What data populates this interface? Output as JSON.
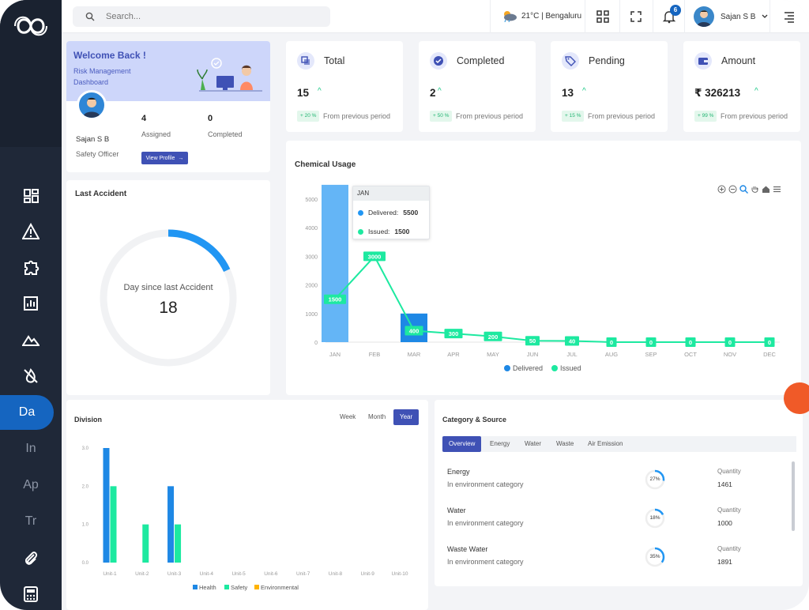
{
  "header": {
    "search_placeholder": "Search...",
    "weather": "21°C | Bengaluru",
    "notification_count": "6",
    "user_name": "Sajan S B"
  },
  "sidebar": {
    "items": [
      {
        "icon": "dashboard-icon"
      },
      {
        "icon": "warning-icon"
      },
      {
        "icon": "puzzle-icon"
      },
      {
        "icon": "report-chart-icon"
      },
      {
        "icon": "mountain-icon"
      },
      {
        "icon": "no-fire-icon"
      },
      {
        "text": "Da",
        "active": true
      },
      {
        "text": "In"
      },
      {
        "text": "Ap"
      },
      {
        "text": "Tr"
      },
      {
        "icon": "paperclip-icon"
      },
      {
        "icon": "calculator-icon"
      }
    ]
  },
  "welcome": {
    "title": "Welcome Back !",
    "subtitle": "Risk Management Dashboard",
    "name": "Sajan S B",
    "role": "Safety Officer",
    "assigned_value": "4",
    "assigned_label": "Assigned",
    "completed_value": "0",
    "completed_label": "Completed",
    "view_profile": "View Profile"
  },
  "stats": [
    {
      "title": "Total",
      "value": "15",
      "change": "+ 20 %",
      "from": "From previous period",
      "icon": "layers-icon"
    },
    {
      "title": "Completed",
      "value": "2",
      "change": "+ 50 %",
      "from": "From previous period",
      "icon": "check-circle-icon"
    },
    {
      "title": "Pending",
      "value": "13",
      "change": "+ 15 %",
      "from": "From previous period",
      "icon": "tag-icon"
    },
    {
      "title": "Amount",
      "value": "₹ 326213",
      "change": "+ 99 %",
      "from": "From previous period",
      "icon": "wallet-icon"
    }
  ],
  "accident": {
    "title": "Last Accident",
    "caption": "Day since last Accident",
    "days": "18",
    "progress": 0.18
  },
  "chemical": {
    "title": "Chemical Usage",
    "tooltip": {
      "month": "JAN",
      "delivered_label": "Delivered:",
      "delivered_value": "5500",
      "issued_label": "Issued:",
      "issued_value": "1500"
    }
  },
  "division": {
    "title": "Division",
    "toggles": [
      "Week",
      "Month",
      "Year"
    ],
    "active_toggle": "Year"
  },
  "category": {
    "title": "Category & Source",
    "tabs": [
      "Overview",
      "Energy",
      "Water",
      "Waste",
      "Air Emission"
    ],
    "quantity_label": "Quantity",
    "rows": [
      {
        "name": "Energy",
        "category": "In environment category",
        "percent": "27%",
        "fraction": 0.27,
        "quantity": "1461"
      },
      {
        "name": "Water",
        "category": "In environment category",
        "percent": "18%",
        "fraction": 0.18,
        "quantity": "1000"
      },
      {
        "name": "Waste Water",
        "category": "In environment category",
        "percent": "35%",
        "fraction": 0.35,
        "quantity": "1891"
      }
    ]
  },
  "colors": {
    "accent": "#3f51b5",
    "delivered": "#2196f3",
    "issued": "#1de9a0",
    "health": "#1e88e5",
    "safety": "#1de9a0",
    "environmental": "#ffb300"
  },
  "chart_data": [
    {
      "type": "bar",
      "title": "Chemical Usage",
      "categories": [
        "JAN",
        "FEB",
        "MAR",
        "APR",
        "MAY",
        "JUN",
        "JUL",
        "AUG",
        "SEP",
        "OCT",
        "NOV",
        "DEC"
      ],
      "series": [
        {
          "name": "Delivered",
          "type": "bar",
          "values": [
            5500,
            0,
            1000,
            0,
            0,
            0,
            0,
            0,
            0,
            0,
            0,
            0
          ]
        },
        {
          "name": "Issued",
          "type": "line",
          "values": [
            1500,
            3000,
            400,
            300,
            200,
            50,
            40,
            0,
            0,
            0,
            0,
            0
          ]
        }
      ],
      "yticks": [
        "0",
        "1000",
        "2000",
        "3000",
        "4000",
        "5000"
      ],
      "ylim": [
        0,
        5000
      ],
      "legend": "bottom"
    },
    {
      "type": "bar",
      "title": "Division",
      "categories": [
        "Unit-1",
        "Unit-2",
        "Unit-3",
        "Unit-4",
        "Unit-5",
        "Unit-6",
        "Unit-7",
        "Unit-8",
        "Unit-9",
        "Unit-10"
      ],
      "series": [
        {
          "name": "Health",
          "values": [
            3,
            0,
            2,
            0,
            0,
            0,
            0,
            0,
            0,
            0
          ]
        },
        {
          "name": "Safety",
          "values": [
            2,
            1,
            1,
            0,
            0,
            0,
            0,
            0,
            0,
            0
          ]
        },
        {
          "name": "Environmental",
          "values": [
            0,
            0,
            0,
            0,
            0,
            0,
            0,
            0,
            0,
            0
          ]
        }
      ],
      "yticks": [
        "0.0",
        "1.0",
        "2.0",
        "3.0"
      ],
      "ylim": [
        0,
        3
      ],
      "legend": "bottom"
    }
  ]
}
